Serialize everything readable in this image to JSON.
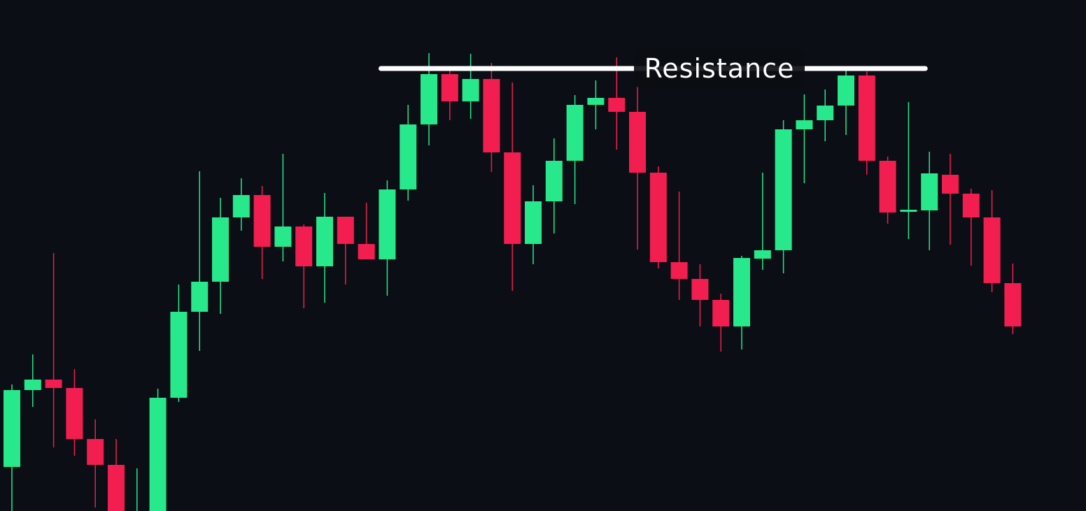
{
  "chart_data": {
    "type": "candlestick",
    "open": [
      63,
      173,
      188,
      176,
      103,
      66,
      -29,
      -19,
      162,
      285,
      328,
      420,
      452,
      378,
      407,
      350,
      421,
      382,
      360,
      460,
      553,
      625,
      586,
      618,
      513,
      382,
      443,
      501,
      581,
      591,
      571,
      484,
      356,
      332,
      302,
      264,
      361,
      373,
      546,
      559,
      580,
      623,
      501,
      428,
      430,
      481,
      454,
      420,
      326
    ],
    "high": [
      181,
      224,
      369,
      203,
      131,
      103,
      61,
      175,
      324,
      486,
      448,
      476,
      465,
      511,
      410,
      455,
      421,
      441,
      473,
      581,
      655,
      631,
      654,
      641,
      613,
      466,
      533,
      595,
      616,
      649,
      609,
      493,
      457,
      353,
      311,
      365,
      484,
      559,
      596,
      603,
      631,
      629,
      507,
      585,
      514,
      511,
      461,
      459,
      354
    ],
    "low": [
      0,
      149,
      91,
      79,
      5,
      -20,
      -49,
      -25,
      156,
      229,
      282,
      401,
      332,
      357,
      290,
      298,
      324,
      360,
      308,
      444,
      523,
      559,
      561,
      485,
      315,
      353,
      397,
      439,
      546,
      517,
      374,
      347,
      302,
      264,
      228,
      231,
      345,
      340,
      469,
      529,
      538,
      481,
      411,
      389,
      373,
      381,
      351,
      313,
      253
    ],
    "close": [
      173,
      188,
      176,
      103,
      66,
      -10,
      -9,
      162,
      285,
      328,
      420,
      452,
      378,
      407,
      350,
      421,
      382,
      360,
      460,
      553,
      625,
      586,
      618,
      513,
      382,
      443,
      501,
      581,
      591,
      571,
      484,
      356,
      332,
      302,
      264,
      362,
      373,
      546,
      559,
      580,
      623,
      501,
      427,
      431,
      483,
      454,
      420,
      326,
      264
    ],
    "up_color": "#27e88b",
    "down_color": "#f21e50",
    "ylim": [
      0,
      731
    ],
    "annotation": {
      "text": "Resistance",
      "value": 633
    }
  }
}
